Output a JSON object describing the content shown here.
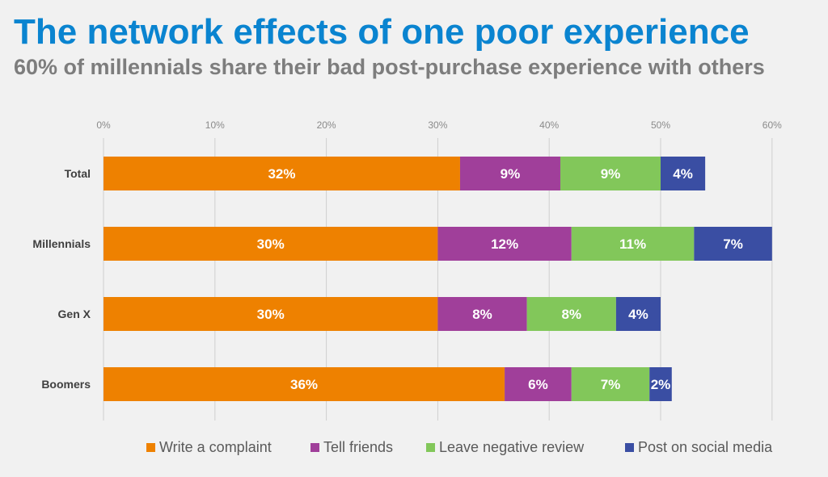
{
  "title": "The network effects of one poor experience",
  "subtitle": "60% of millennials share their bad post-purchase experience with others",
  "chart_data": {
    "type": "bar",
    "orientation": "horizontal",
    "stacked": true,
    "categories": [
      "Total",
      "Millennials",
      "Gen X",
      "Boomers"
    ],
    "series": [
      {
        "name": "Write a complaint",
        "color": "#ee8100",
        "values": [
          32,
          30,
          30,
          36
        ]
      },
      {
        "name": "Tell friends",
        "color": "#a03f9a",
        "values": [
          9,
          12,
          8,
          6
        ]
      },
      {
        "name": "Leave negative review",
        "color": "#82c75a",
        "values": [
          9,
          11,
          8,
          7
        ]
      },
      {
        "name": "Post on social media",
        "color": "#3a4ea3",
        "values": [
          4,
          7,
          4,
          2
        ]
      }
    ],
    "data_labels": [
      [
        "32%",
        "9%",
        "9%",
        "4%"
      ],
      [
        "30%",
        "12%",
        "11%",
        "7%"
      ],
      [
        "30%",
        "8%",
        "8%",
        "4%"
      ],
      [
        "36%",
        "6%",
        "7%",
        "2%"
      ]
    ],
    "x_ticks": [
      0,
      10,
      20,
      30,
      40,
      50,
      60
    ],
    "x_tick_labels": [
      "0%",
      "10%",
      "20%",
      "30%",
      "40%",
      "50%",
      "60%"
    ],
    "xlim": [
      0,
      60
    ],
    "x_axis_position": "top",
    "grid": true,
    "legend_position": "bottom"
  }
}
